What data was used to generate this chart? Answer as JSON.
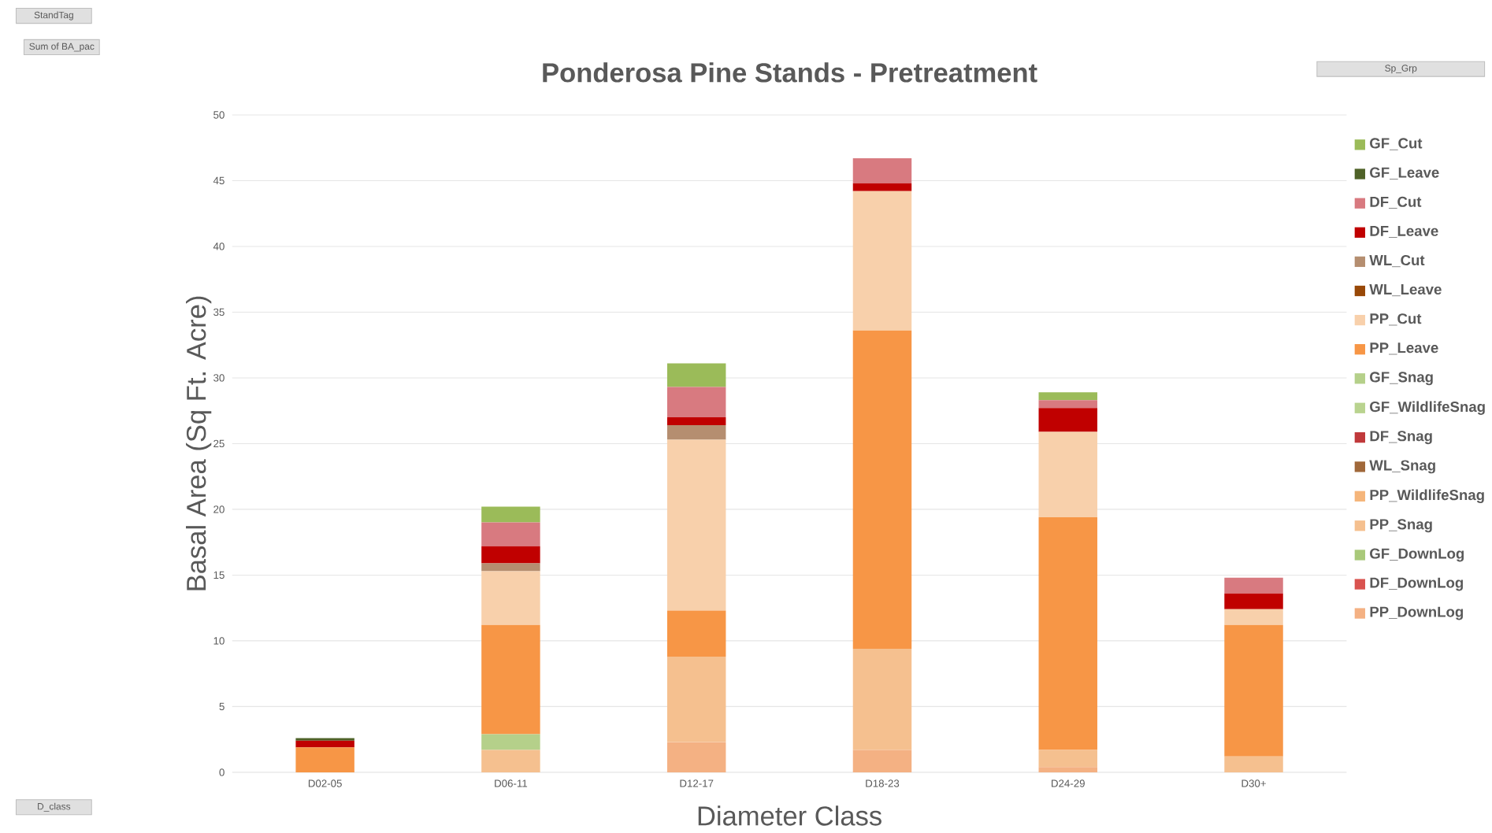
{
  "chart_data": {
    "type": "bar",
    "stacked": true,
    "title": "Ponderosa Pine Stands - Pretreatment",
    "xlabel": "Diameter Class",
    "ylabel": "Basal Area (Sq Ft. Acre)",
    "legend_title": "Sp_Grp",
    "annotations": [
      "StandTag",
      "Sum of BA_pac",
      "D_class"
    ],
    "categories": [
      "D02-05",
      "D06-11",
      "D12-17",
      "D18-23",
      "D24-29",
      "D30+"
    ],
    "ylim": [
      0,
      50
    ],
    "yticks": [
      0,
      5,
      10,
      15,
      20,
      25,
      30,
      35,
      40,
      45,
      50
    ],
    "grid": "y",
    "legend": "right",
    "series": [
      {
        "name": "PP_DownLog",
        "color": "#f4b183",
        "values": [
          null,
          null,
          2.3,
          1.7,
          0.4,
          null
        ]
      },
      {
        "name": "DF_DownLog",
        "color": "#d9534f",
        "values": [
          null,
          null,
          null,
          null,
          null,
          null
        ]
      },
      {
        "name": "GF_DownLog",
        "color": "#a9c97a",
        "values": [
          null,
          null,
          null,
          null,
          null,
          null
        ]
      },
      {
        "name": "PP_Snag",
        "color": "#f5c08f",
        "values": [
          null,
          1.7,
          6.5,
          7.7,
          1.3,
          1.2
        ]
      },
      {
        "name": "PP_WildlifeSnag",
        "color": "#f5b57a",
        "values": [
          null,
          null,
          null,
          null,
          null,
          null
        ]
      },
      {
        "name": "WL_Snag",
        "color": "#a0683a",
        "values": [
          null,
          null,
          null,
          null,
          null,
          null
        ]
      },
      {
        "name": "DF_Snag",
        "color": "#c0393b",
        "values": [
          null,
          null,
          null,
          null,
          null,
          null
        ]
      },
      {
        "name": "GF_WildlifeSnag",
        "color": "#b9d38f",
        "values": [
          null,
          null,
          null,
          null,
          null,
          null
        ]
      },
      {
        "name": "GF_Snag",
        "color": "#b5d08a",
        "values": [
          null,
          1.2,
          null,
          null,
          null,
          null
        ]
      },
      {
        "name": "PP_Leave",
        "color": "#f79646",
        "values": [
          1.9,
          8.3,
          3.5,
          24.2,
          17.7,
          10.0
        ]
      },
      {
        "name": "PP_Cut",
        "color": "#f8d0ab",
        "values": [
          null,
          4.1,
          13.0,
          10.6,
          6.5,
          1.2
        ]
      },
      {
        "name": "WL_Leave",
        "color": "#984807",
        "values": [
          null,
          null,
          null,
          null,
          null,
          null
        ]
      },
      {
        "name": "WL_Cut",
        "color": "#b58e70",
        "values": [
          null,
          0.6,
          1.1,
          null,
          null,
          null
        ]
      },
      {
        "name": "DF_Leave",
        "color": "#c00000",
        "values": [
          0.5,
          1.3,
          0.6,
          0.6,
          1.8,
          1.2
        ]
      },
      {
        "name": "DF_Cut",
        "color": "#d87a80",
        "values": [
          null,
          1.8,
          2.3,
          1.9,
          0.6,
          1.2
        ]
      },
      {
        "name": "GF_Leave",
        "color": "#4f6228",
        "values": [
          0.2,
          null,
          null,
          null,
          null,
          null
        ]
      },
      {
        "name": "GF_Cut",
        "color": "#9bbb59",
        "values": [
          null,
          1.2,
          1.8,
          null,
          0.6,
          null
        ]
      }
    ]
  }
}
